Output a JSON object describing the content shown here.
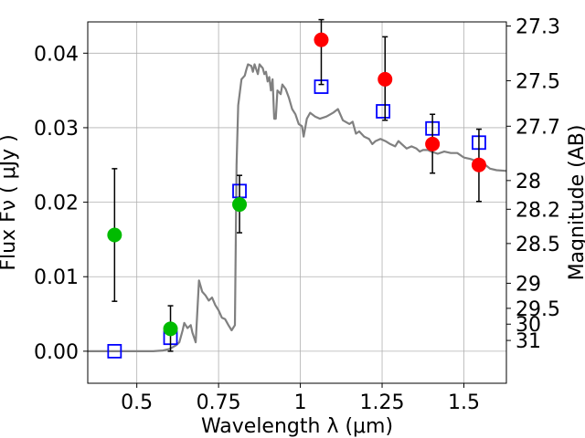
{
  "chart_data": {
    "type": "scatter",
    "title": "",
    "xlabel": "Wavelength  λ (μm)",
    "ylabel": "Flux  Fν  ( μJy )",
    "y2label": "Magnitude (AB)",
    "xlim": [
      0.35,
      1.63
    ],
    "ylim": [
      -0.0043,
      0.0442
    ],
    "grid": true,
    "x_ticks": [
      {
        "value": 0.5,
        "label": "0.5"
      },
      {
        "value": 0.75,
        "label": "0.75"
      },
      {
        "value": 1.0,
        "label": "1"
      },
      {
        "value": 1.25,
        "label": "1.25"
      },
      {
        "value": 1.5,
        "label": "1.5"
      }
    ],
    "y_ticks": [
      {
        "value": 0.0,
        "label": "0.00"
      },
      {
        "value": 0.01,
        "label": "0.01"
      },
      {
        "value": 0.02,
        "label": "0.02"
      },
      {
        "value": 0.03,
        "label": "0.03"
      },
      {
        "value": 0.04,
        "label": "0.04"
      }
    ],
    "y2_ticks": [
      {
        "value": 27.3,
        "label": "27.3"
      },
      {
        "value": 27.5,
        "label": "27.5"
      },
      {
        "value": 27.7,
        "label": "27.7"
      },
      {
        "value": 28.0,
        "label": "28"
      },
      {
        "value": 28.2,
        "label": "28.2"
      },
      {
        "value": 28.5,
        "label": "28.5"
      },
      {
        "value": 29.0,
        "label": "29"
      },
      {
        "value": 29.5,
        "label": "29.5"
      },
      {
        "value": 30.0,
        "label": "30"
      },
      {
        "value": 31.0,
        "label": "31"
      }
    ],
    "series": [
      {
        "kind": "line",
        "color": "#808080",
        "points": [
          [
            0.35,
            0.0
          ],
          [
            0.52,
            0.0
          ],
          [
            0.55,
            0.0
          ],
          [
            0.58,
            0.0001
          ],
          [
            0.6,
            0.0003
          ],
          [
            0.62,
            0.0008
          ],
          [
            0.63,
            0.0012
          ],
          [
            0.64,
            0.0028
          ],
          [
            0.645,
            0.0038
          ],
          [
            0.655,
            0.0031
          ],
          [
            0.665,
            0.0035
          ],
          [
            0.67,
            0.0025
          ],
          [
            0.68,
            0.0012
          ],
          [
            0.69,
            0.0095
          ],
          [
            0.7,
            0.008
          ],
          [
            0.71,
            0.0075
          ],
          [
            0.72,
            0.0068
          ],
          [
            0.73,
            0.0072
          ],
          [
            0.74,
            0.0062
          ],
          [
            0.75,
            0.0055
          ],
          [
            0.76,
            0.0045
          ],
          [
            0.77,
            0.0043
          ],
          [
            0.78,
            0.0035
          ],
          [
            0.79,
            0.0028
          ],
          [
            0.8,
            0.0035
          ],
          [
            0.805,
            0.025
          ],
          [
            0.81,
            0.033
          ],
          [
            0.82,
            0.0365
          ],
          [
            0.83,
            0.037
          ],
          [
            0.835,
            0.0378
          ],
          [
            0.84,
            0.0385
          ],
          [
            0.85,
            0.0383
          ],
          [
            0.855,
            0.0375
          ],
          [
            0.86,
            0.0385
          ],
          [
            0.87,
            0.0372
          ],
          [
            0.875,
            0.0385
          ],
          [
            0.885,
            0.038
          ],
          [
            0.89,
            0.0372
          ],
          [
            0.895,
            0.0375
          ],
          [
            0.9,
            0.0362
          ],
          [
            0.905,
            0.0368
          ],
          [
            0.91,
            0.035
          ],
          [
            0.915,
            0.0365
          ],
          [
            0.92,
            0.0312
          ],
          [
            0.925,
            0.0312
          ],
          [
            0.93,
            0.035
          ],
          [
            0.94,
            0.0345
          ],
          [
            0.945,
            0.0358
          ],
          [
            0.955,
            0.0352
          ],
          [
            0.965,
            0.034
          ],
          [
            0.975,
            0.0325
          ],
          [
            0.985,
            0.0318
          ],
          [
            0.995,
            0.0305
          ],
          [
            1.005,
            0.0302
          ],
          [
            1.01,
            0.0288
          ],
          [
            1.02,
            0.0312
          ],
          [
            1.03,
            0.032
          ],
          [
            1.045,
            0.0315
          ],
          [
            1.06,
            0.0312
          ],
          [
            1.08,
            0.0315
          ],
          [
            1.1,
            0.032
          ],
          [
            1.115,
            0.0325
          ],
          [
            1.13,
            0.031
          ],
          [
            1.15,
            0.0305
          ],
          [
            1.16,
            0.0308
          ],
          [
            1.17,
            0.0292
          ],
          [
            1.18,
            0.0295
          ],
          [
            1.195,
            0.0288
          ],
          [
            1.21,
            0.0285
          ],
          [
            1.22,
            0.0278
          ],
          [
            1.23,
            0.0282
          ],
          [
            1.245,
            0.0285
          ],
          [
            1.26,
            0.0282
          ],
          [
            1.275,
            0.0278
          ],
          [
            1.29,
            0.0275
          ],
          [
            1.3,
            0.0282
          ],
          [
            1.31,
            0.0278
          ],
          [
            1.325,
            0.0272
          ],
          [
            1.34,
            0.0275
          ],
          [
            1.355,
            0.0272
          ],
          [
            1.365,
            0.0268
          ],
          [
            1.375,
            0.027
          ],
          [
            1.39,
            0.027
          ],
          [
            1.4,
            0.0268
          ],
          [
            1.42,
            0.0265
          ],
          [
            1.44,
            0.0268
          ],
          [
            1.46,
            0.0266
          ],
          [
            1.48,
            0.0266
          ],
          [
            1.5,
            0.026
          ],
          [
            1.52,
            0.0258
          ],
          [
            1.54,
            0.0255
          ],
          [
            1.56,
            0.0252
          ],
          [
            1.58,
            0.0245
          ],
          [
            1.6,
            0.0243
          ],
          [
            1.63,
            0.0242
          ]
        ]
      },
      {
        "kind": "open-square",
        "color": "#0000ff",
        "points": [
          [
            0.432,
            0.0
          ],
          [
            0.603,
            0.0018
          ],
          [
            0.814,
            0.0215
          ],
          [
            1.064,
            0.0355
          ],
          [
            1.253,
            0.0322
          ],
          [
            1.404,
            0.0299
          ],
          [
            1.546,
            0.028
          ]
        ]
      },
      {
        "kind": "filled-circle",
        "color": "#00bb00",
        "points": [
          [
            0.432,
            0.0156
          ],
          [
            0.603,
            0.003
          ],
          [
            0.814,
            0.0197
          ]
        ],
        "errors": [
          [
            0.0067,
            0.0245
          ],
          [
            0.0,
            0.0061
          ],
          [
            0.0159,
            0.0236
          ]
        ]
      },
      {
        "kind": "filled-circle",
        "color": "#ff0000",
        "points": [
          [
            1.064,
            0.0418
          ],
          [
            1.259,
            0.0365
          ],
          [
            1.404,
            0.0278
          ],
          [
            1.546,
            0.025
          ]
        ],
        "errors": [
          [
            0.0358,
            0.0445
          ],
          [
            0.031,
            0.0422
          ],
          [
            0.0239,
            0.0318
          ],
          [
            0.0201,
            0.0298
          ]
        ]
      }
    ]
  }
}
